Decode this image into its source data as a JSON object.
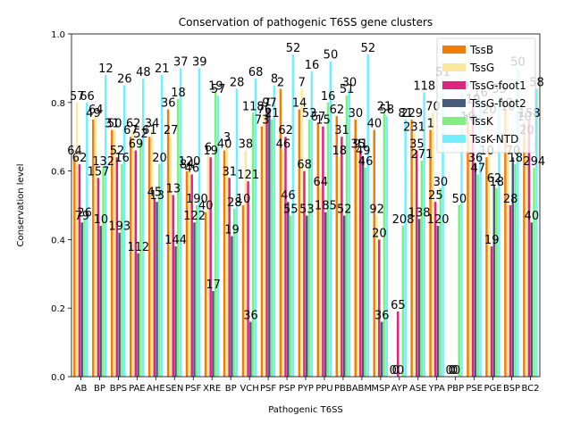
{
  "chart_data": {
    "type": "bar",
    "title": "Conservation of pathogenic T6SS gene clusters",
    "xlabel": "Pathogenic T6SS",
    "ylabel": "Conservation level",
    "ylim": [
      0,
      1.0
    ],
    "yticks": [
      "0.0",
      "0.2",
      "0.4",
      "0.6",
      "0.8",
      "1.0"
    ],
    "grid": false,
    "legend_position": "top-right",
    "categories": [
      "AB",
      "BP",
      "BPS",
      "PAE",
      "AHE",
      "SEN",
      "PSF",
      "XRE",
      "BP",
      "VCH",
      "PSF",
      "PSP",
      "PYP",
      "PPU",
      "PBB",
      "ABM",
      "MSP",
      "AYP",
      "ASE",
      "YPA",
      "PBP",
      "PSE",
      "PGE",
      "BSP",
      "BC2"
    ],
    "series": [
      {
        "name": "TssB",
        "color": "#f57c00",
        "values": [
          0.64,
          0.75,
          0.72,
          0.7,
          0.7,
          0.78,
          0.6,
          0.48,
          0.66,
          0.5,
          0.73,
          0.84,
          0.78,
          0.74,
          0.76,
          0.75,
          0.72,
          0.0,
          0.75,
          0.72,
          0.0,
          0.74,
          0.64,
          0.78,
          0.74
        ],
        "labels": [
          "64",
          "49",
          "31",
          "67",
          "61",
          "36",
          "84",
          "40",
          "40",
          "10",
          "73",
          "2",
          "14",
          "67",
          "62",
          "30",
          "40",
          "0",
          "229",
          "1",
          "0",
          "10",
          "10",
          "10",
          "10"
        ]
      },
      {
        "name": "TssG",
        "color": "#fbe99a",
        "values": [
          0.8,
          0.76,
          0.72,
          0.72,
          0.72,
          0.7,
          0.61,
          0.65,
          0.68,
          0.66,
          0.76,
          0.66,
          0.84,
          0.55,
          0.64,
          0.66,
          0.47,
          0.0,
          0.71,
          0.77,
          0.0,
          0.73,
          0.76,
          0.77,
          0.7
        ],
        "labels": [
          "57",
          "64",
          "50",
          "62",
          "34",
          "27",
          "120",
          "6",
          "3",
          "38",
          "76",
          "46",
          "7",
          "64",
          "18",
          "35",
          "92",
          "0",
          "231",
          "70",
          "0",
          "10",
          "20",
          "10",
          "20"
        ]
      },
      {
        "name": "TssG-foot1",
        "color": "#e0247e",
        "values": [
          0.62,
          0.58,
          0.64,
          0.66,
          0.52,
          0.53,
          0.59,
          0.64,
          0.58,
          0.57,
          0.78,
          0.7,
          0.6,
          0.73,
          0.7,
          0.66,
          0.4,
          0.19,
          0.66,
          0.51,
          0.0,
          0.79,
          0.38,
          0.5,
          0.75
        ],
        "labels": [
          "62",
          "157",
          "52",
          "69",
          "45",
          "13",
          "46",
          "19",
          "31",
          "121",
          "7",
          "62",
          "68",
          "15",
          "31",
          "91",
          "20",
          "65",
          "35",
          "25",
          "0",
          "19",
          "19",
          "28",
          "158"
        ]
      },
      {
        "name": "TssG-foot2",
        "color": "#475a7f",
        "values": [
          0.45,
          0.44,
          0.42,
          0.36,
          0.51,
          0.38,
          0.45,
          0.25,
          0.41,
          0.16,
          0.78,
          0.51,
          0.47,
          0.48,
          0.47,
          0.64,
          0.16,
          0.0,
          0.46,
          0.44,
          0.0,
          0.62,
          0.56,
          0.64,
          0.45
        ],
        "labels": [
          "79",
          "10",
          "193",
          "112",
          "13",
          "144",
          "122",
          "17",
          "19",
          "36",
          "97",
          "46",
          "53",
          "185",
          "52",
          "49",
          "36",
          "0",
          "138",
          "120",
          "0",
          "36",
          "62",
          "70",
          "40"
        ]
      },
      {
        "name": "TssK",
        "color": "#7df07d",
        "values": [
          0.46,
          0.61,
          0.62,
          0.69,
          0.62,
          0.81,
          0.5,
          0.83,
          0.49,
          0.77,
          0.75,
          0.47,
          0.75,
          0.8,
          0.82,
          0.61,
          0.77,
          0.44,
          0.63,
          0.55,
          0.5,
          0.59,
          0.55,
          0.62,
          0.61
        ],
        "labels": [
          "26",
          "132",
          "16",
          "52",
          "20",
          "18",
          "190",
          "19",
          "28",
          "118",
          "21",
          "55",
          "53",
          "16",
          "51",
          "46",
          "21",
          "208",
          "271",
          "30",
          "50",
          "47",
          "18",
          "18",
          "294"
        ]
      },
      {
        "name": "TssK-NTD",
        "color": "#6ef0ff",
        "values": [
          0.8,
          0.88,
          0.85,
          0.87,
          0.88,
          0.9,
          0.9,
          0.82,
          0.84,
          0.87,
          0.85,
          0.94,
          0.89,
          0.92,
          0.84,
          0.94,
          0.76,
          0.75,
          0.83,
          0.87,
          0.83,
          0.81,
          0.82,
          0.9,
          0.84
        ],
        "labels": [
          "66",
          "12",
          "26",
          "48",
          "21",
          "37",
          "39",
          "57",
          "28",
          "68",
          "8",
          "52",
          "16",
          "50",
          "30",
          "52",
          "58",
          "81",
          "118",
          "51",
          "19",
          "16",
          "35",
          "50",
          "58"
        ]
      }
    ]
  }
}
